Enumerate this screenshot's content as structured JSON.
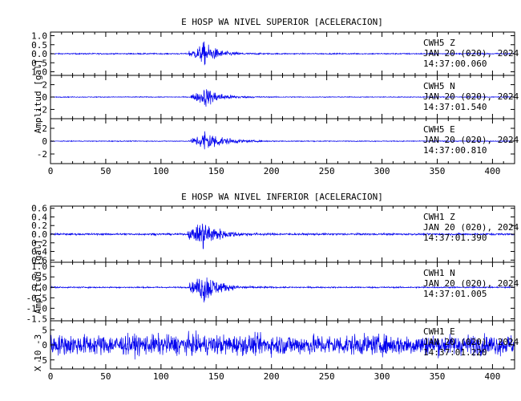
{
  "chart_data": [
    {
      "type": "line",
      "title": "E HOSP WA NIVEL SUPERIOR [ACELERACION]",
      "ylabel": "Amplitud [gal]",
      "xlim": [
        0,
        420
      ],
      "xticks": [
        "0",
        "50",
        "100",
        "150",
        "200",
        "250",
        "300",
        "350",
        "400"
      ],
      "color": "#0000ee",
      "grid": false,
      "series": [
        {
          "name": "CWH5 Z",
          "station": "CWH5",
          "component": "Z",
          "date": "JAN 20 (020), 2024",
          "time": "14:37:00.060",
          "ylim": [
            -1.2,
            1.2
          ],
          "yticks": [
            "1.0",
            "0.5",
            "0.0",
            "0.5",
            "1.0"
          ],
          "yticks_values": [
            1.0,
            0.5,
            0.0,
            -0.5,
            -1.0
          ],
          "noise": 0.03,
          "peak": 1.1,
          "onset": 125,
          "peak_time": 139,
          "decay": 12
        },
        {
          "name": "CWH5 N",
          "station": "CWH5",
          "component": "N",
          "date": "JAN 20 (020), 2024",
          "time": "14:37:01.540",
          "ylim": [
            -3.5,
            3.5
          ],
          "yticks": [
            "2",
            "0",
            "-2"
          ],
          "yticks_values": [
            2,
            0,
            -2
          ],
          "noise": 0.06,
          "peak": 2.8,
          "onset": 127,
          "peak_time": 140,
          "decay": 13
        },
        {
          "name": "CWH5 E",
          "station": "CWH5",
          "component": "E",
          "date": "JAN 20 (020), 2024",
          "time": "14:37:00.810",
          "ylim": [
            -3.5,
            3.5
          ],
          "yticks": [
            "2",
            "0",
            "-2"
          ],
          "yticks_values": [
            2,
            0,
            -2
          ],
          "noise": 0.06,
          "peak": 3.2,
          "onset": 127,
          "peak_time": 140,
          "decay": 14
        }
      ]
    },
    {
      "type": "line",
      "title": "E HOSP WA NIVEL INFERIOR [ACELERACION]",
      "ylabel": "Amplitud [gal]",
      "xlim": [
        0,
        420
      ],
      "xticks": [
        "0",
        "50",
        "100",
        "150",
        "200",
        "250",
        "300",
        "350",
        "400"
      ],
      "color": "#0000ee",
      "grid": false,
      "series": [
        {
          "name": "CWH1 Z",
          "station": "CWH1",
          "component": "Z",
          "date": "JAN 20 (020), 2024",
          "time": "14:37:01.390",
          "ylim": [
            -0.65,
            0.65
          ],
          "yticks": [
            "0.6",
            "0.4",
            "0.2",
            "0.0",
            "0.2",
            "0.4",
            "0.6"
          ],
          "yticks_values": [
            0.6,
            0.4,
            0.2,
            0.0,
            -0.2,
            -0.4,
            -0.6
          ],
          "noise": 0.02,
          "peak": 0.6,
          "onset": 124,
          "peak_time": 138,
          "decay": 13
        },
        {
          "name": "CWH1 N",
          "station": "CWH1",
          "component": "N",
          "date": "JAN 20 (020), 2024",
          "time": "14:37:01.005",
          "ylim": [
            -1.6,
            1.2
          ],
          "yticks": [
            "1.0",
            "0.5",
            "0.0",
            "-0.5",
            "-1.0",
            "-1.5"
          ],
          "yticks_values": [
            1.0,
            0.5,
            0.0,
            -0.5,
            -1.0,
            -1.5
          ],
          "noise": 0.03,
          "peak": 1.4,
          "onset": 126,
          "peak_time": 139,
          "decay": 12
        },
        {
          "name": "CWH1 E",
          "station": "CWH1",
          "component": "E",
          "date": "JAN 20 (020), 2024",
          "time": "14:37:01.220",
          "ylim": [
            -8,
            8
          ],
          "yticks": [
            "5",
            "0",
            "-5"
          ],
          "yticks_values": [
            5,
            0,
            -5
          ],
          "noise": 3.2,
          "peak": 0,
          "onset": 0,
          "peak_time": 0,
          "decay": 1,
          "scale_label": "X 10 -3"
        }
      ]
    }
  ]
}
